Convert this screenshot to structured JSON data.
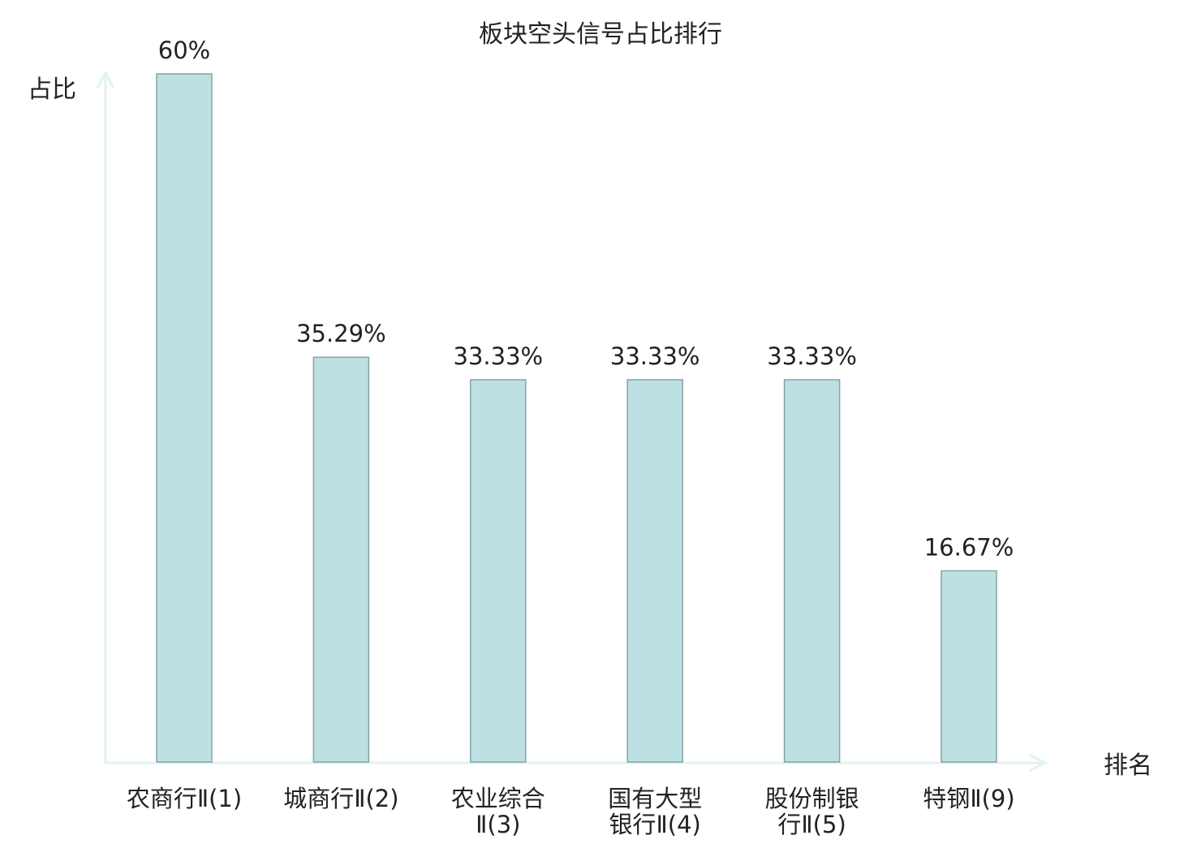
{
  "chart_data": {
    "type": "bar",
    "title": "板块空头信号占比排行",
    "ylabel": "占比",
    "xlabel": "排名",
    "ylim": [
      0,
      60
    ],
    "grid": false,
    "categories": [
      [
        "农商行Ⅱ(1)"
      ],
      [
        "城商行Ⅱ(2)"
      ],
      [
        "农业综合",
        "Ⅱ(3)"
      ],
      [
        "国有大型",
        "银行Ⅱ(4)"
      ],
      [
        "股份制银",
        "行Ⅱ(5)"
      ],
      [
        "特钢Ⅱ(9)"
      ]
    ],
    "values": [
      60,
      35.29,
      33.33,
      33.33,
      33.33,
      16.67
    ],
    "value_labels": [
      "60%",
      "35.29%",
      "33.33%",
      "33.33%",
      "33.33%",
      "16.67%"
    ],
    "highlight_index": 5,
    "colors": {
      "bar_fill": "#bde0e3",
      "bar_stroke": "#85a3a8",
      "axis": "#e0f3f0",
      "text": "#222222",
      "highlight_text": "#e8161b"
    }
  }
}
